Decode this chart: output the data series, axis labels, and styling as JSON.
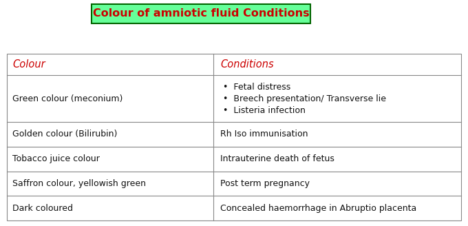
{
  "title": "Colour of amniotic fluid Conditions",
  "title_color": "#cc0000",
  "title_bg": "#66ff99",
  "title_border": "#006600",
  "col_headers": [
    "Colour",
    "Conditions"
  ],
  "header_color": "#cc0000",
  "rows": [
    {
      "colour": "Green colour (meconium)",
      "conditions": "•  Fetal distress\n•  Breech presentation/ Transverse lie\n•  Listeria infection"
    },
    {
      "colour": "Golden colour (Bilirubin)",
      "conditions": "Rh Iso immunisation"
    },
    {
      "colour": "Tobacco juice colour",
      "conditions": "Intrauterine death of fetus"
    },
    {
      "colour": "Saffron colour, yellowish green",
      "conditions": "Post term pregnancy"
    },
    {
      "colour": "Dark coloured",
      "conditions": "Concealed haemorrhage in Abruptio placenta"
    }
  ],
  "table_border_color": "#888888",
  "cell_text_color": "#111111",
  "bg_color": "#ffffff",
  "col_split": 0.455,
  "font_size": 9.0,
  "header_font_size": 10.5,
  "title_font_size": 11.5,
  "fig_width": 6.8,
  "fig_height": 3.28,
  "dpi": 100
}
